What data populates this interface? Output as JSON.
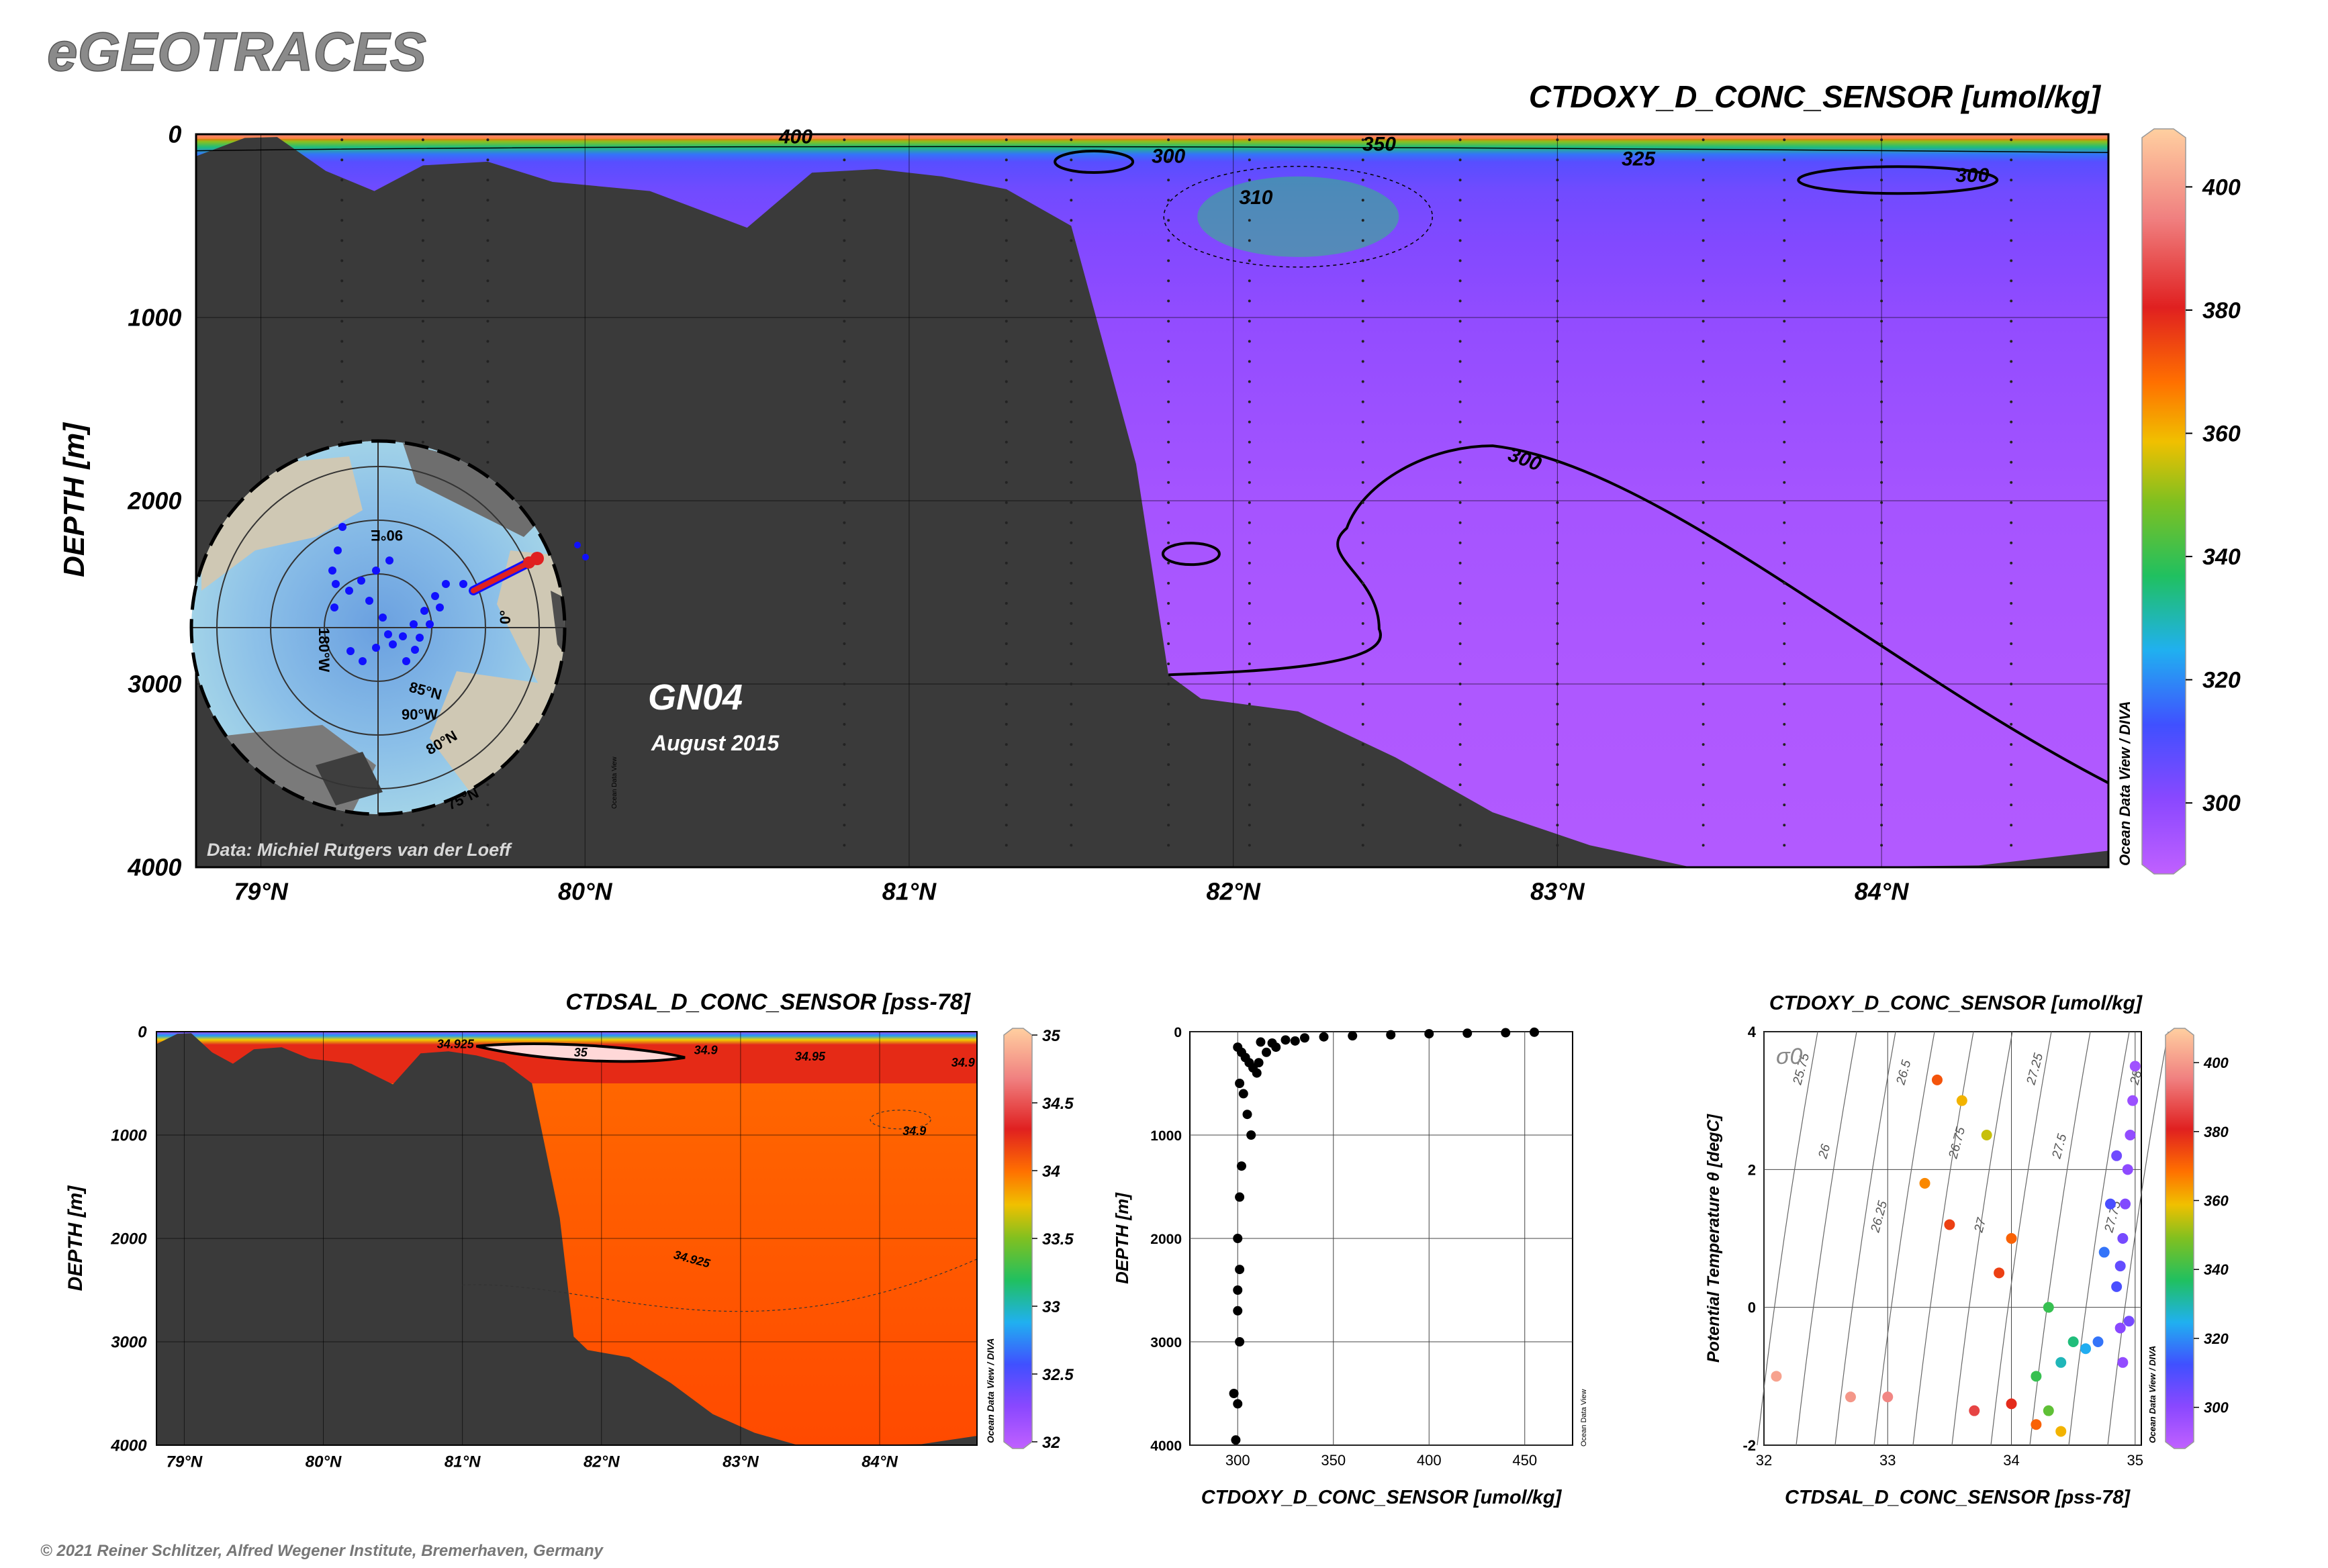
{
  "header": {
    "brand": "eGEOTRACES",
    "credit": "Data: Michiel Rutgers van der Loeff",
    "copyright": "© 2021 Reiner Schlitzer, Alfred Wegener Institute, Bremerhaven, Germany",
    "watermark": "Ocean Data View / DIVA",
    "watermark_short": "Ocean Data View"
  },
  "inset_map": {
    "labels": [
      "90°E",
      "180°W",
      "0°",
      "85°N",
      "90°W",
      "80°N",
      "75°N"
    ],
    "cruise": "GN04",
    "date": "August 2015"
  },
  "colors": {
    "land": "#3a3a3a",
    "contour": "#000000",
    "red_track": "#e02020",
    "blue_track": "#1010ff"
  },
  "chart_data": [
    {
      "id": "main-section",
      "type": "heatmap",
      "title": "CTDOXY_D_CONC_SENSOR [umol/kg]",
      "ylabel": "DEPTH [m]",
      "xlim": [
        78.8,
        84.7
      ],
      "ylim": [
        4000,
        0
      ],
      "x_ticks": [
        79,
        80,
        81,
        82,
        83,
        84
      ],
      "x_tick_labels": [
        "79°N",
        "80°N",
        "81°N",
        "82°N",
        "83°N",
        "84°N"
      ],
      "y_ticks": [
        0,
        1000,
        2000,
        3000,
        4000
      ],
      "y_tick_labels": [
        "0",
        "1000",
        "2000",
        "3000",
        "4000"
      ],
      "colorbar": {
        "range": [
          290,
          408
        ],
        "ticks": [
          300,
          320,
          340,
          360,
          380,
          400
        ],
        "tick_labels": [
          "300",
          "320",
          "340",
          "360",
          "380",
          "400"
        ]
      },
      "contour_labels": [
        "400",
        "350",
        "325",
        "300",
        "310",
        "300",
        "300"
      ],
      "bathymetry": [
        [
          78.8,
          120
        ],
        [
          78.95,
          20
        ],
        [
          79.05,
          15
        ],
        [
          79.2,
          200
        ],
        [
          79.35,
          310
        ],
        [
          79.5,
          170
        ],
        [
          79.7,
          150
        ],
        [
          79.9,
          260
        ],
        [
          80.2,
          310
        ],
        [
          80.5,
          510
        ],
        [
          80.7,
          210
        ],
        [
          80.9,
          190
        ],
        [
          81.1,
          230
        ],
        [
          81.3,
          300
        ],
        [
          81.5,
          500
        ],
        [
          81.7,
          1800
        ],
        [
          81.8,
          2950
        ],
        [
          81.9,
          3080
        ],
        [
          82.2,
          3150
        ],
        [
          82.5,
          3400
        ],
        [
          82.8,
          3700
        ],
        [
          83.1,
          3880
        ],
        [
          83.4,
          3995
        ],
        [
          83.8,
          4000
        ],
        [
          84.3,
          3990
        ],
        [
          84.7,
          3910
        ]
      ],
      "gradient_stops": [
        [
          0,
          405
        ],
        [
          8,
          390
        ],
        [
          20,
          370
        ],
        [
          40,
          350
        ],
        [
          70,
          335
        ],
        [
          110,
          318
        ],
        [
          150,
          310
        ],
        [
          300,
          306
        ],
        [
          600,
          303
        ],
        [
          1000,
          300
        ],
        [
          1500,
          298
        ],
        [
          2000,
          296
        ],
        [
          3000,
          294
        ],
        [
          4000,
          293
        ]
      ]
    },
    {
      "id": "salinity-section",
      "type": "heatmap",
      "title": "CTDSAL_D_CONC_SENSOR [pss-78]",
      "ylabel": "DEPTH [m]",
      "xlim": [
        78.8,
        84.7
      ],
      "ylim": [
        4000,
        0
      ],
      "x_ticks": [
        79,
        80,
        81,
        82,
        83,
        84
      ],
      "x_tick_labels": [
        "79°N",
        "80°N",
        "81°N",
        "82°N",
        "83°N",
        "84°N"
      ],
      "y_ticks": [
        0,
        1000,
        2000,
        3000,
        4000
      ],
      "y_tick_labels": [
        "0",
        "1000",
        "2000",
        "3000",
        "4000"
      ],
      "colorbar": {
        "range": [
          32,
          35
        ],
        "ticks": [
          32,
          32.5,
          33,
          33.5,
          34,
          34.5,
          35
        ],
        "tick_labels": [
          "32",
          "32.5",
          "33",
          "33.5",
          "34",
          "34.5",
          "35"
        ]
      },
      "contour_labels": [
        "34.925",
        "35",
        "34.9",
        "34.95",
        "34.9",
        "34.9",
        "34.925"
      ],
      "bathymetry": [
        [
          78.8,
          120
        ],
        [
          78.95,
          20
        ],
        [
          79.05,
          15
        ],
        [
          79.2,
          200
        ],
        [
          79.35,
          310
        ],
        [
          79.5,
          170
        ],
        [
          79.7,
          150
        ],
        [
          79.9,
          260
        ],
        [
          80.2,
          310
        ],
        [
          80.5,
          510
        ],
        [
          80.7,
          210
        ],
        [
          80.9,
          190
        ],
        [
          81.1,
          230
        ],
        [
          81.3,
          300
        ],
        [
          81.5,
          500
        ],
        [
          81.7,
          1800
        ],
        [
          81.8,
          2950
        ],
        [
          81.9,
          3080
        ],
        [
          82.2,
          3150
        ],
        [
          82.5,
          3400
        ],
        [
          82.8,
          3700
        ],
        [
          83.1,
          3880
        ],
        [
          83.4,
          3995
        ],
        [
          83.8,
          4000
        ],
        [
          84.3,
          3990
        ],
        [
          84.7,
          3910
        ]
      ]
    },
    {
      "id": "profile",
      "type": "scatter",
      "xlabel": "CTDOXY_D_CONC_SENSOR [umol/kg]",
      "ylabel": "DEPTH [m]",
      "xlim": [
        275,
        475
      ],
      "ylim": [
        4000,
        0
      ],
      "x_ticks": [
        300,
        350,
        400,
        450
      ],
      "x_tick_labels": [
        "300",
        "350",
        "400",
        "450"
      ],
      "y_ticks": [
        0,
        1000,
        2000,
        3000,
        4000
      ],
      "y_tick_labels": [
        "0",
        "1000",
        "2000",
        "3000",
        "4000"
      ],
      "points": [
        [
          300,
          150
        ],
        [
          302,
          200
        ],
        [
          304,
          250
        ],
        [
          306,
          300
        ],
        [
          308,
          350
        ],
        [
          310,
          400
        ],
        [
          301,
          500
        ],
        [
          303,
          600
        ],
        [
          305,
          800
        ],
        [
          307,
          1000
        ],
        [
          302,
          1300
        ],
        [
          301,
          1600
        ],
        [
          300,
          2000
        ],
        [
          301,
          2300
        ],
        [
          300,
          2500
        ],
        [
          300,
          2700
        ],
        [
          301,
          3000
        ],
        [
          298,
          3500
        ],
        [
          300,
          3600
        ],
        [
          299,
          3950
        ],
        [
          312,
          100
        ],
        [
          318,
          110
        ],
        [
          320,
          150
        ],
        [
          325,
          80
        ],
        [
          335,
          60
        ],
        [
          345,
          50
        ],
        [
          360,
          40
        ],
        [
          380,
          30
        ],
        [
          400,
          20
        ],
        [
          420,
          15
        ],
        [
          440,
          10
        ],
        [
          455,
          5
        ],
        [
          330,
          90
        ],
        [
          315,
          200
        ],
        [
          311,
          300
        ]
      ]
    },
    {
      "id": "ts-diagram",
      "type": "scatter",
      "title": "CTDOXY_D_CONC_SENSOR [umol/kg]",
      "xlabel": "CTDSAL_D_CONC_SENSOR [pss-78]",
      "ylabel": "Potential Temperature θ [degC]",
      "xlim": [
        32,
        35.05
      ],
      "ylim": [
        -2,
        4
      ],
      "x_ticks": [
        32,
        33,
        34,
        35
      ],
      "x_tick_labels": [
        "32",
        "33",
        "34",
        "35"
      ],
      "y_ticks": [
        -2,
        0,
        2,
        4
      ],
      "y_tick_labels": [
        "-2",
        "0",
        "2",
        "4"
      ],
      "sigma_label": "σ0",
      "isopycnal_labels": [
        "25.75",
        "26",
        "26.25",
        "26.5",
        "26.75",
        "27",
        "27.25",
        "27.5",
        "27.75",
        "28"
      ],
      "colorbar": {
        "range": [
          290,
          408
        ],
        "ticks": [
          300,
          320,
          340,
          360,
          380,
          400
        ],
        "tick_labels": [
          "300",
          "320",
          "340",
          "360",
          "380",
          "400"
        ]
      },
      "points": [
        [
          33.4,
          3.3,
          372
        ],
        [
          33.6,
          3.0,
          360
        ],
        [
          33.8,
          2.5,
          355
        ],
        [
          33.3,
          1.8,
          365
        ],
        [
          33.5,
          1.2,
          375
        ],
        [
          34.0,
          1.0,
          370
        ],
        [
          33.9,
          0.5,
          375
        ],
        [
          34.3,
          0.0,
          340
        ],
        [
          34.5,
          -0.5,
          335
        ],
        [
          34.4,
          -0.8,
          330
        ],
        [
          34.2,
          -1.0,
          340
        ],
        [
          34.6,
          -0.6,
          325
        ],
        [
          34.7,
          -0.5,
          318
        ],
        [
          34.3,
          -1.5,
          345
        ],
        [
          34.4,
          -1.8,
          360
        ],
        [
          34.2,
          -1.7,
          370
        ],
        [
          34.0,
          -1.4,
          378
        ],
        [
          33.7,
          -1.5,
          385
        ],
        [
          33.0,
          -1.3,
          395
        ],
        [
          32.7,
          -1.3,
          398
        ],
        [
          32.1,
          -1.0,
          400
        ],
        [
          34.85,
          0.3,
          312
        ],
        [
          34.88,
          0.6,
          308
        ],
        [
          34.9,
          1.0,
          305
        ],
        [
          34.92,
          1.5,
          303
        ],
        [
          34.94,
          2.0,
          301
        ],
        [
          34.96,
          2.5,
          300
        ],
        [
          34.98,
          3.0,
          298
        ],
        [
          35.0,
          3.5,
          297
        ],
        [
          34.95,
          -0.2,
          305
        ],
        [
          34.9,
          -0.8,
          300
        ],
        [
          34.88,
          -0.3,
          302
        ],
        [
          34.75,
          0.8,
          318
        ],
        [
          34.8,
          1.5,
          312
        ],
        [
          34.85,
          2.2,
          306
        ]
      ]
    }
  ]
}
